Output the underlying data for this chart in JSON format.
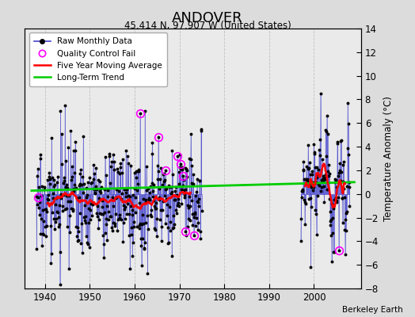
{
  "title": "ANDOVER",
  "subtitle": "45.414 N, 97.907 W (United States)",
  "credit": "Berkeley Earth",
  "ylabel": "Temperature Anomaly (°C)",
  "ylim": [
    -8,
    14
  ],
  "xlim": [
    1935.5,
    2010.5
  ],
  "yticks": [
    -8,
    -6,
    -4,
    -2,
    0,
    2,
    4,
    6,
    8,
    10,
    12,
    14
  ],
  "xticks": [
    1940,
    1950,
    1960,
    1970,
    1980,
    1990,
    2000
  ],
  "bg_color": "#dcdcdc",
  "plot_bg_color": "#eaeaea",
  "raw_line_color": "#4444cc",
  "raw_marker_color": "black",
  "qc_fail_color": "magenta",
  "moving_avg_color": "red",
  "trend_color": "#00cc00",
  "seed": 17,
  "period1_start": 1938,
  "period1_end": 1975,
  "period2_start": 1997,
  "period2_end": 2008
}
